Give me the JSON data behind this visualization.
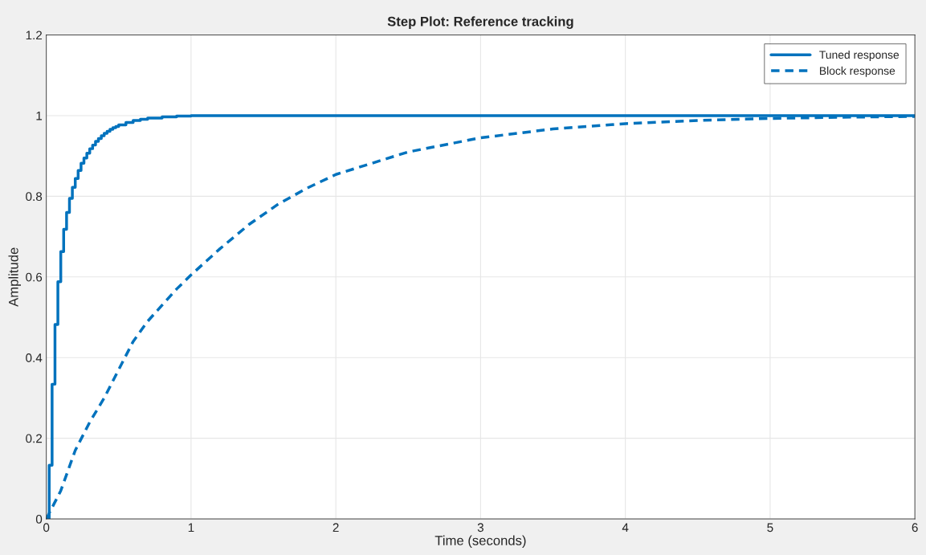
{
  "chart_data": {
    "type": "line",
    "title": "Step Plot: Reference tracking",
    "xlabel": "Time (seconds)",
    "ylabel": "Amplitude",
    "xlim": [
      0,
      6
    ],
    "ylim": [
      0,
      1.2
    ],
    "xticks": [
      0,
      1,
      2,
      3,
      4,
      5,
      6
    ],
    "yticks": [
      0,
      0.2,
      0.4,
      0.6,
      0.8,
      1,
      1.2
    ],
    "grid": true,
    "legend": "top right",
    "series": [
      {
        "name": "Tuned response",
        "type": "step",
        "color": "#0072bd",
        "line_style": "solid",
        "x": [
          0,
          0.02,
          0.04,
          0.06,
          0.08,
          0.1,
          0.12,
          0.14,
          0.16,
          0.18,
          0.2,
          0.22,
          0.24,
          0.26,
          0.28,
          0.3,
          0.32,
          0.34,
          0.36,
          0.38,
          0.4,
          0.42,
          0.44,
          0.46,
          0.48,
          0.5,
          0.55,
          0.6,
          0.65,
          0.7,
          0.8,
          0.9,
          1.0,
          6.0
        ],
        "values": [
          0,
          0.133,
          0.334,
          0.482,
          0.588,
          0.663,
          0.718,
          0.76,
          0.795,
          0.822,
          0.844,
          0.864,
          0.882,
          0.895,
          0.907,
          0.918,
          0.927,
          0.936,
          0.943,
          0.95,
          0.956,
          0.961,
          0.966,
          0.97,
          0.973,
          0.977,
          0.983,
          0.988,
          0.991,
          0.994,
          0.997,
          0.999,
          1.0,
          1.0
        ]
      },
      {
        "name": "Block response",
        "color": "#0072bd",
        "line_style": "dashed",
        "x": [
          0,
          0.1,
          0.2,
          0.3,
          0.4,
          0.5,
          0.6,
          0.7,
          0.8,
          0.9,
          1.0,
          1.2,
          1.4,
          1.6,
          1.8,
          2.0,
          2.5,
          3.0,
          3.5,
          4.0,
          4.5,
          5.0,
          5.5,
          6.0
        ],
        "values": [
          0,
          0.07,
          0.17,
          0.24,
          0.3,
          0.37,
          0.44,
          0.49,
          0.53,
          0.57,
          0.605,
          0.67,
          0.73,
          0.78,
          0.82,
          0.854,
          0.91,
          0.945,
          0.967,
          0.98,
          0.988,
          0.993,
          0.996,
          0.998
        ]
      }
    ]
  }
}
